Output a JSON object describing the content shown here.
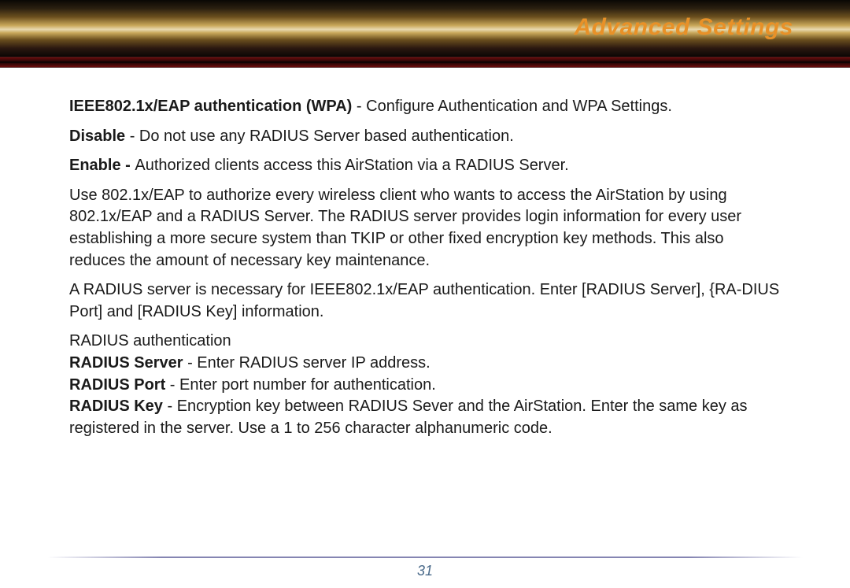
{
  "header": {
    "title": "Advanced Settings",
    "title_color": "#e89128"
  },
  "content": {
    "p1_bold": "IEEE802.1x/EAP authentication (WPA)",
    "p1_rest": " - Configure Authentication and WPA Settings.",
    "p2_bold": "Disable",
    "p2_rest": " - Do not use any RADIUS Server based authentication.",
    "p3_bold": "Enable - ",
    "p3_rest": "Authorized clients access this AirStation via a RADIUS Server.",
    "p4": "Use 802.1x/EAP to authorize every wireless client who wants to access the AirStation by using 802.1x/EAP and a RADIUS Server.  The RADIUS server provides login information for every user establishing a more secure system than TKIP or other fixed encryption key methods.  This also reduces the amount of necessary key maintenance.",
    "p5": "A RADIUS server is necessary for IEEE802.1x/EAP authentication. Enter [RADIUS Server], {RA-DIUS Port] and [RADIUS Key] information.",
    "p6": "RADIUS authentication",
    "p7_bold": "RADIUS Server",
    "p7_rest": " - Enter RADIUS server IP address.",
    "p8_bold": "RADIUS Port",
    "p8_rest": " - Enter port number for authentication.",
    "p9_bold": "RADIUS Key",
    "p9_rest": " - Encryption key between RADIUS Sever and the AirStation. Enter the same key as registered in the server.  Use a 1 to 256 character alphanumeric code."
  },
  "footer": {
    "page_number": "31",
    "page_number_color": "#4a6a8a"
  },
  "colors": {
    "text": "#1a1a1a",
    "background": "#ffffff"
  }
}
